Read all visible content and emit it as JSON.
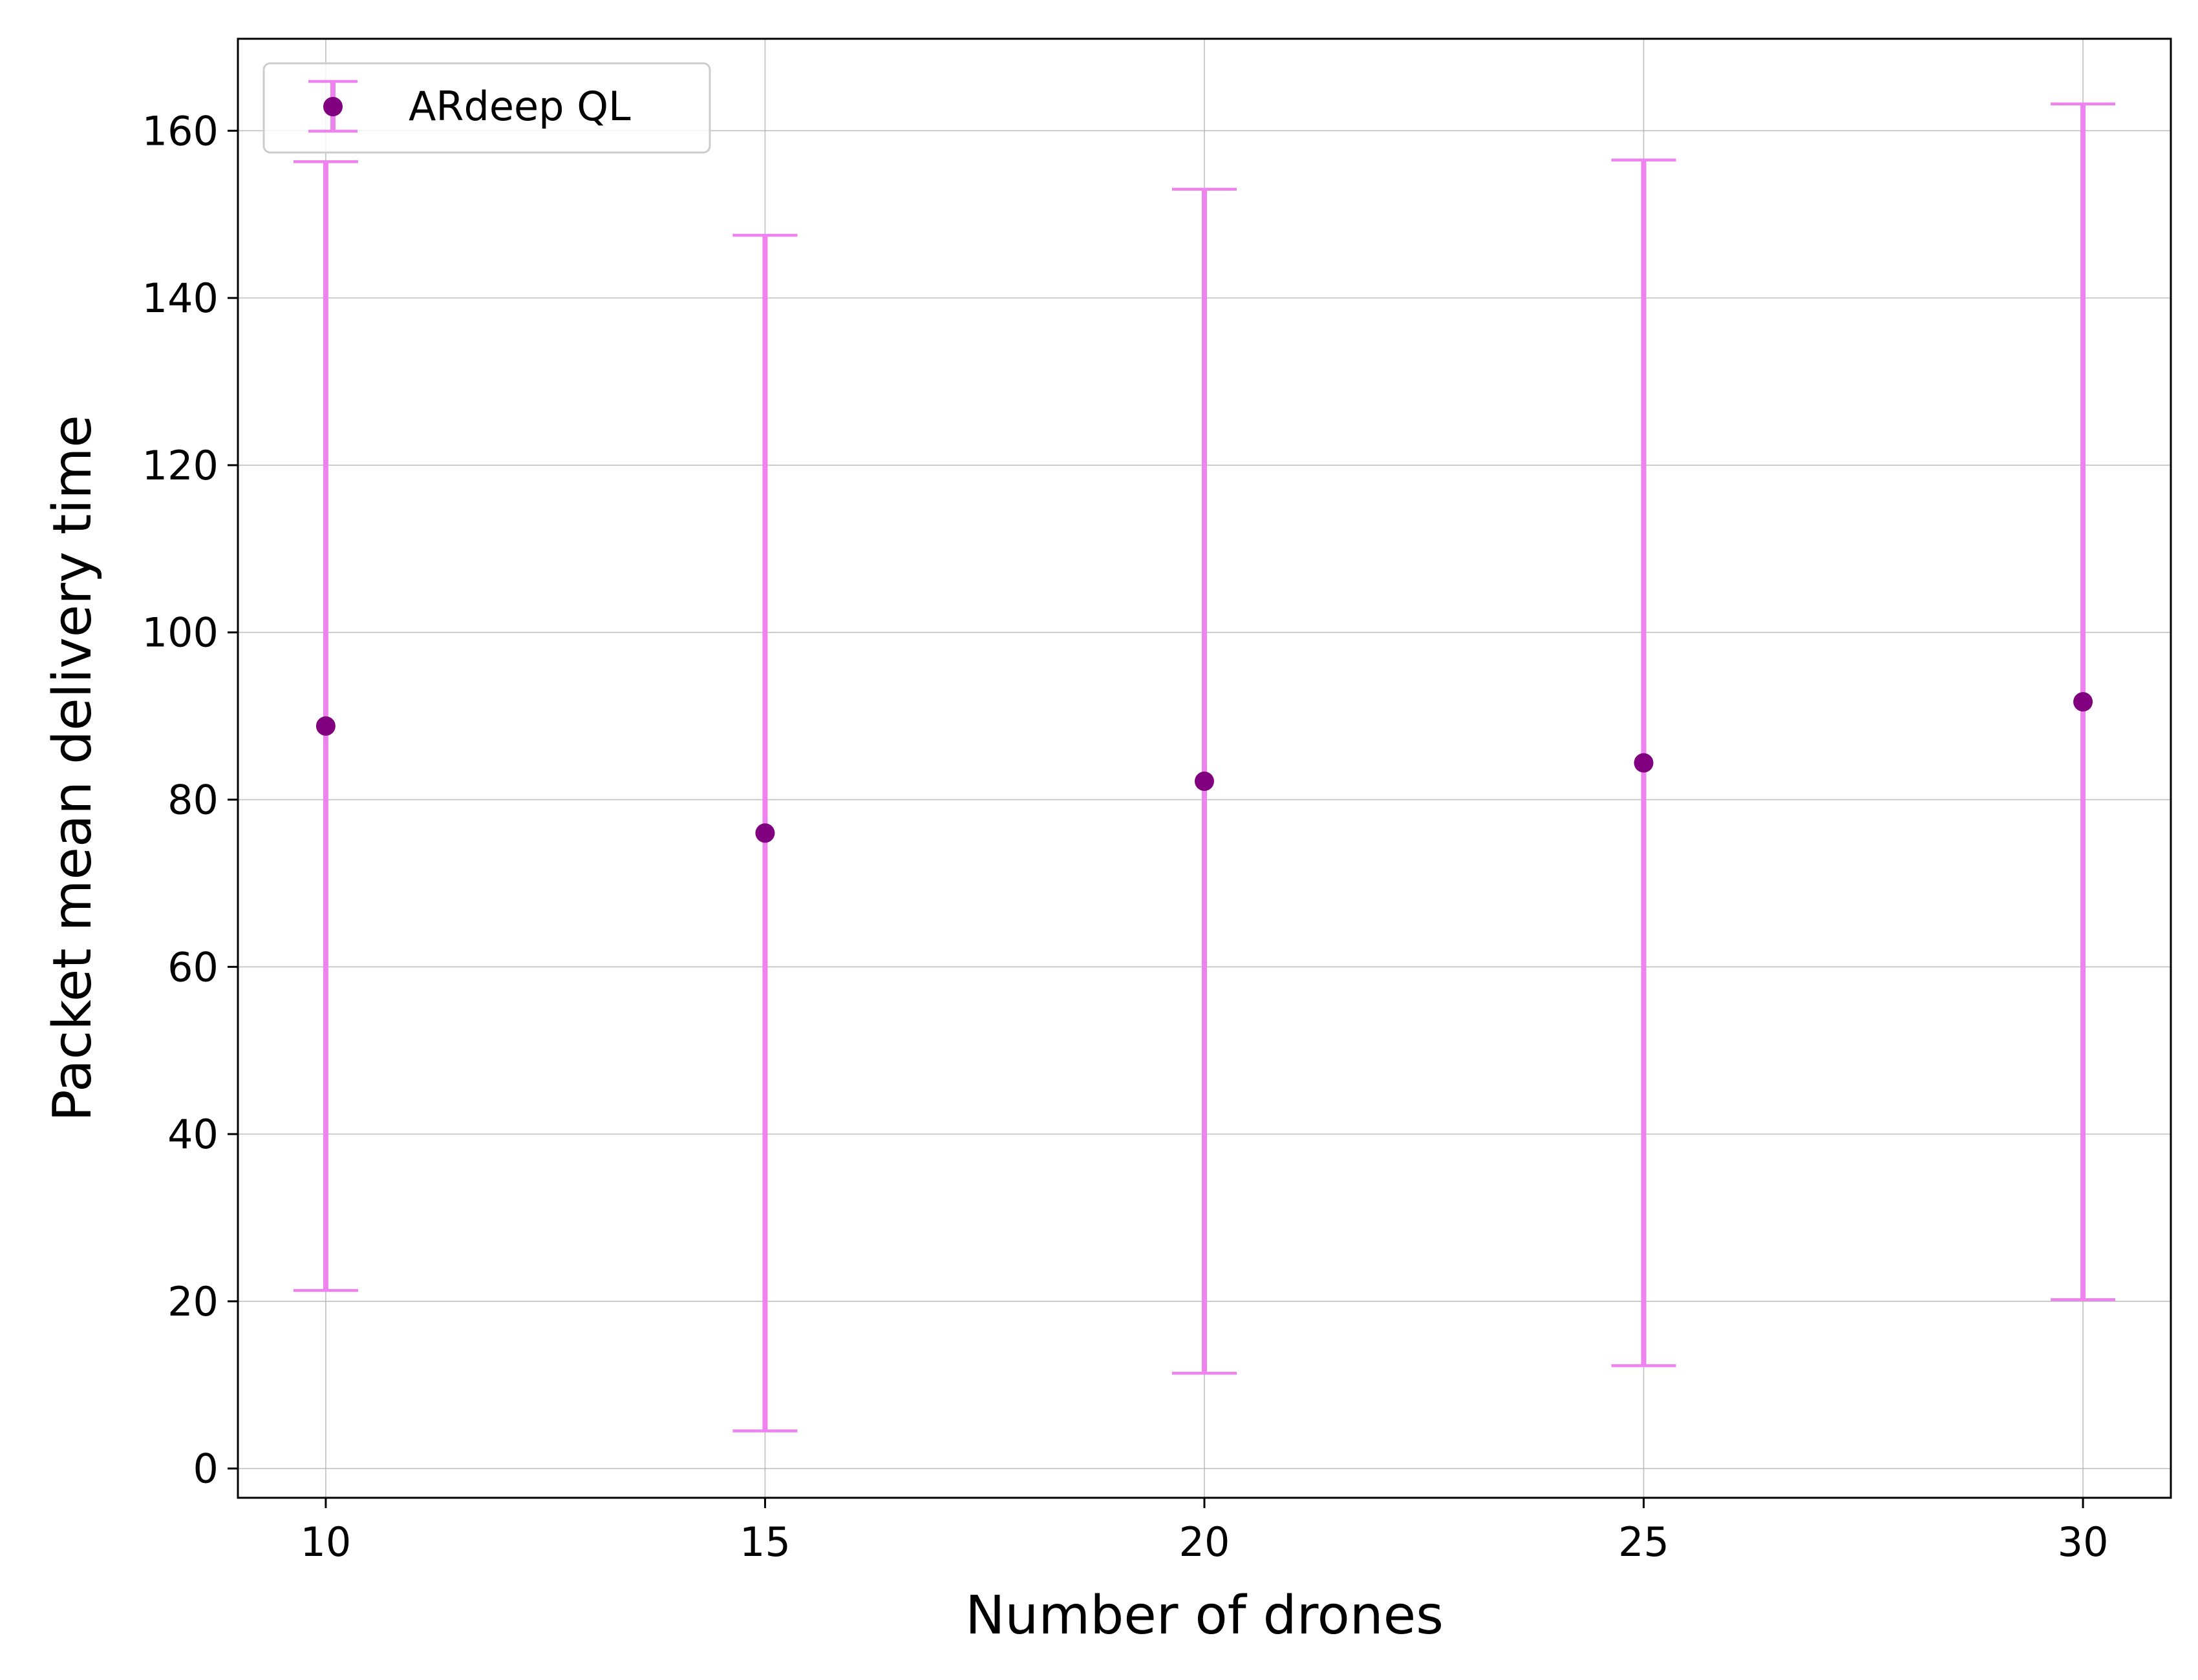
{
  "chart_data": {
    "type": "scatter",
    "title": "",
    "xlabel": "Number of drones",
    "ylabel": "Packet mean delivery time",
    "x": [
      10,
      15,
      20,
      25,
      30
    ],
    "xticks": [
      10,
      15,
      20,
      25,
      30
    ],
    "yticks": [
      0,
      20,
      40,
      60,
      80,
      100,
      120,
      140,
      160
    ],
    "xlim": [
      9,
      31
    ],
    "ylim": [
      -3.5,
      171
    ],
    "grid": true,
    "legend": {
      "position": "top-left",
      "entries": [
        "ARdeep QL"
      ]
    },
    "series": [
      {
        "name": "ARdeep QL",
        "marker_color": "#800080",
        "errorbar_color": "#ee82ee",
        "x": [
          10,
          15,
          20,
          25,
          30
        ],
        "y": [
          88.8,
          76.0,
          82.2,
          84.4,
          91.7
        ],
        "yerr_low": [
          21.3,
          4.5,
          11.4,
          12.3,
          20.2
        ],
        "yerr_high": [
          156.3,
          147.5,
          153.0,
          156.5,
          163.2
        ]
      }
    ]
  }
}
